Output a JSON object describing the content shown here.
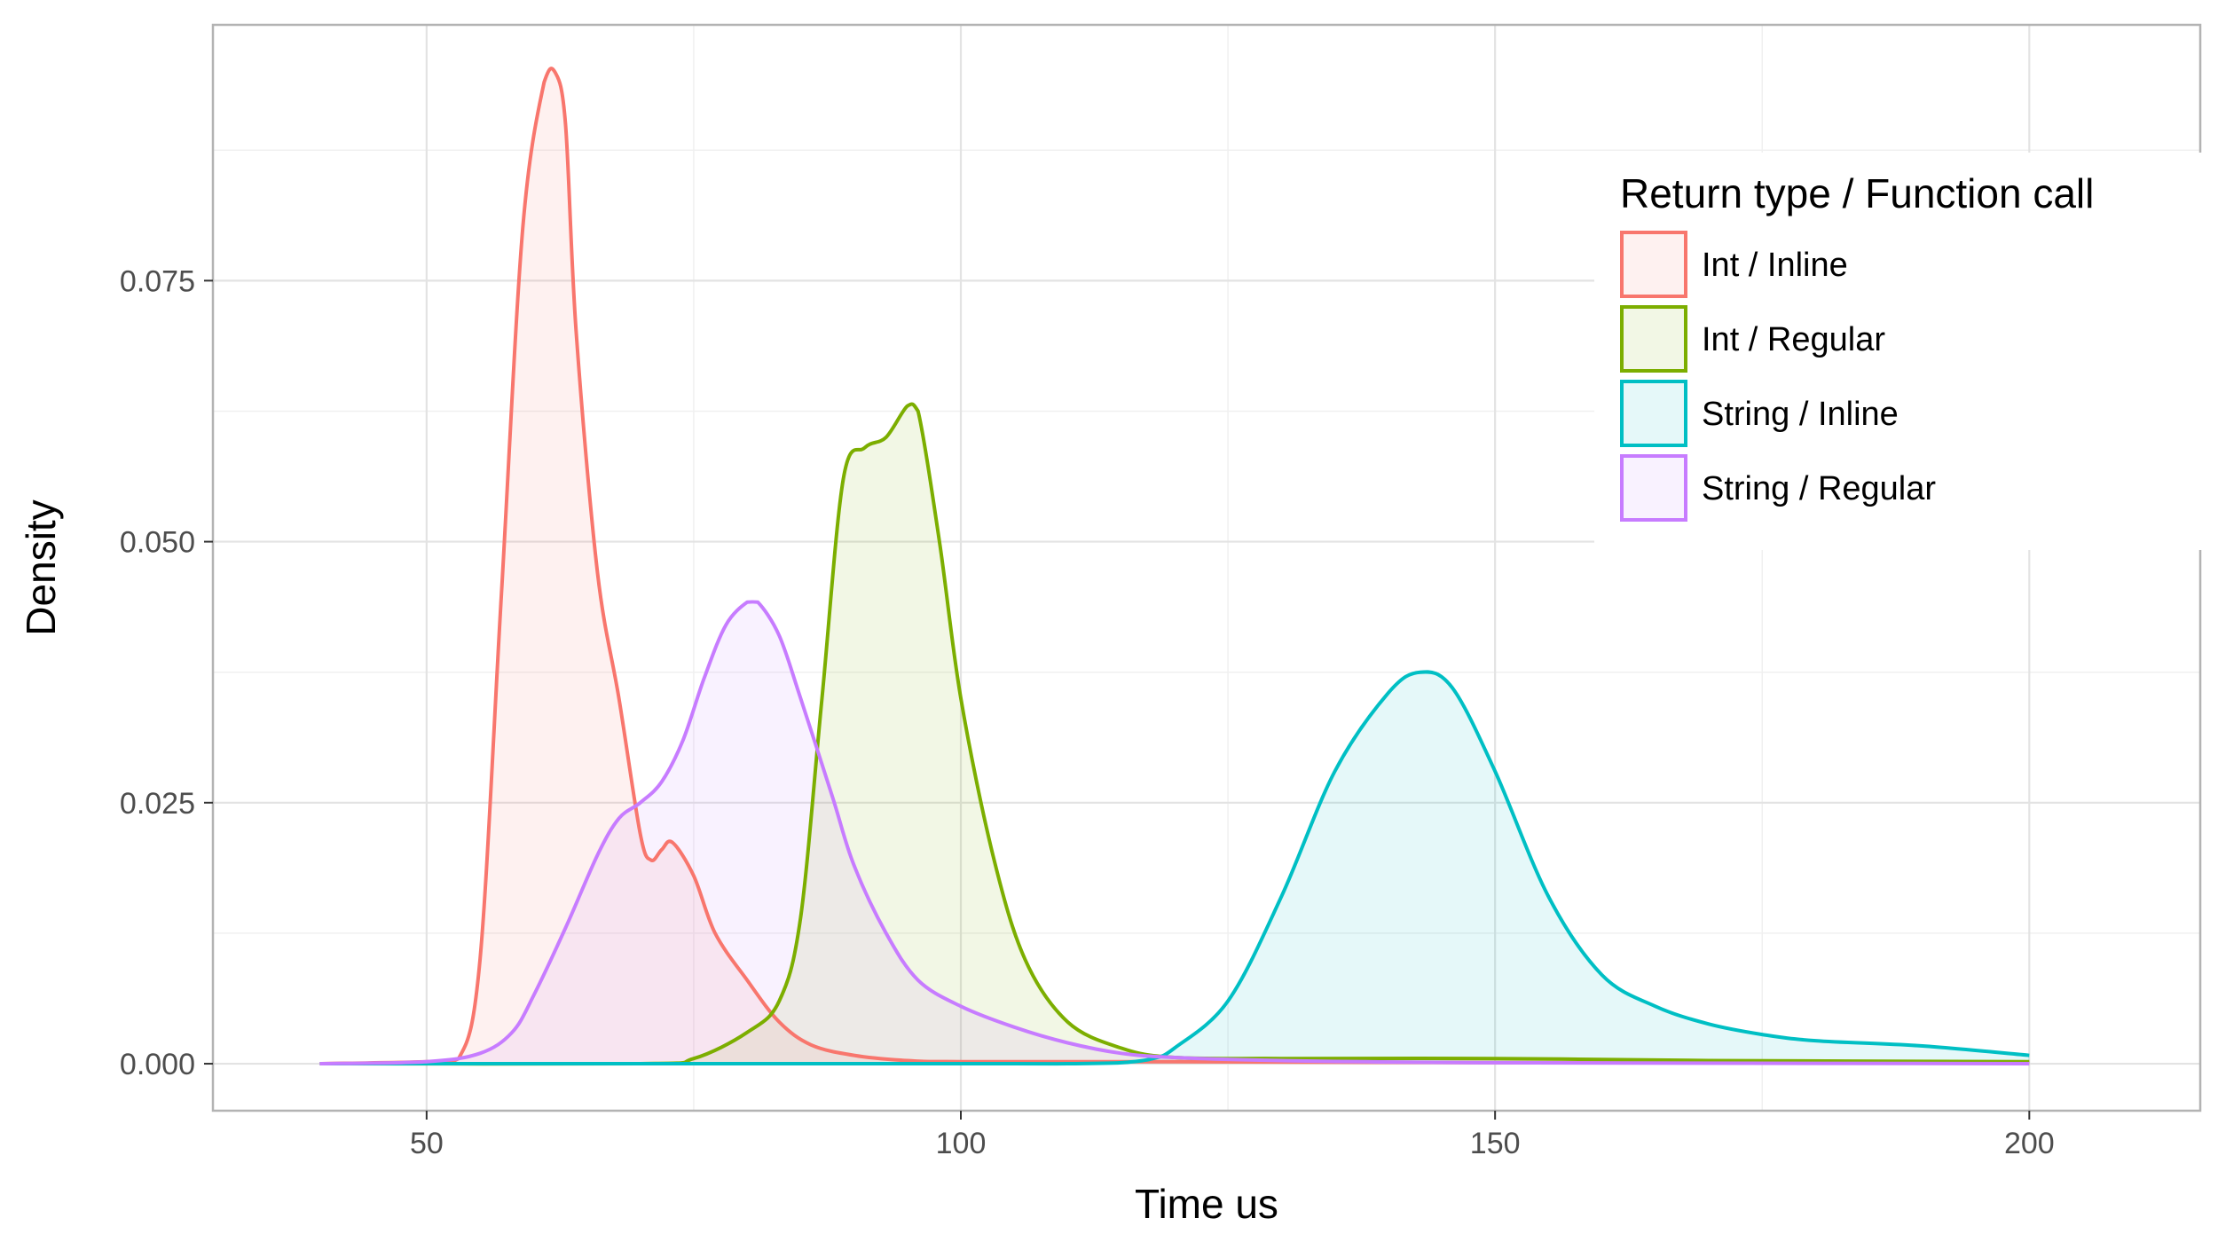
{
  "chart_data": {
    "type": "area",
    "subtype": "density",
    "xlabel": "Time us",
    "ylabel": "Density",
    "xlim": [
      30,
      216
    ],
    "ylim": [
      -0.0045,
      0.0995
    ],
    "x_ticks": [
      50,
      100,
      150,
      200
    ],
    "x_tick_labels": [
      "50",
      "100",
      "150",
      "200"
    ],
    "y_ticks": [
      0.0,
      0.025,
      0.05,
      0.075
    ],
    "y_tick_labels": [
      "0.000",
      "0.025",
      "0.050",
      "0.075"
    ],
    "grid": true,
    "legend": {
      "title": "Return type / Function call",
      "placement": "top-right, inside plot"
    },
    "series": [
      {
        "name": "Int / Inline",
        "color": "#F8766D",
        "x": [
          40,
          50,
          53,
          55,
          57,
          59,
          61,
          62,
          63,
          64,
          66,
          68,
          70,
          71,
          72,
          73,
          75,
          77,
          80,
          83,
          86,
          90,
          95,
          100,
          120,
          150,
          200
        ],
        "y": [
          0,
          0.0002,
          0.0005,
          0.01,
          0.045,
          0.08,
          0.094,
          0.095,
          0.09,
          0.07,
          0.047,
          0.035,
          0.022,
          0.0195,
          0.0205,
          0.0212,
          0.018,
          0.0125,
          0.008,
          0.004,
          0.0018,
          0.0008,
          0.0003,
          0.0002,
          0.0002,
          0.0001,
          0.0001
        ]
      },
      {
        "name": "Int / Regular",
        "color": "#7CAE00",
        "x": [
          40,
          70,
          75,
          80,
          83,
          85,
          87,
          89,
          91,
          93,
          95,
          96,
          98,
          100,
          103,
          106,
          110,
          115,
          120,
          130,
          150,
          170,
          200
        ],
        "y": [
          0,
          0,
          0.0005,
          0.003,
          0.006,
          0.014,
          0.035,
          0.056,
          0.059,
          0.06,
          0.063,
          0.0625,
          0.05,
          0.035,
          0.02,
          0.01,
          0.004,
          0.0015,
          0.0006,
          0.0005,
          0.0005,
          0.0003,
          0.0002
        ]
      },
      {
        "name": "String / Inline",
        "color": "#00BFC4",
        "x": [
          40,
          100,
          110,
          115,
          118,
          120,
          125,
          130,
          135,
          140,
          143,
          146,
          150,
          155,
          160,
          165,
          170,
          175,
          180,
          190,
          200
        ],
        "y": [
          0,
          0,
          0,
          0.0001,
          0.0005,
          0.0015,
          0.006,
          0.016,
          0.028,
          0.0355,
          0.0375,
          0.036,
          0.028,
          0.016,
          0.0085,
          0.0055,
          0.0038,
          0.0028,
          0.0022,
          0.0017,
          0.0008
        ]
      },
      {
        "name": "String / Regular",
        "color": "#C77CFF",
        "x": [
          40,
          50,
          55,
          58,
          60,
          63,
          66,
          68,
          70,
          72,
          74,
          76,
          78,
          80,
          81,
          83,
          85,
          88,
          90,
          93,
          96,
          100,
          105,
          110,
          115,
          120,
          130,
          150,
          200
        ],
        "y": [
          0,
          0.0002,
          0.001,
          0.003,
          0.0065,
          0.013,
          0.02,
          0.0235,
          0.025,
          0.027,
          0.031,
          0.037,
          0.042,
          0.0442,
          0.0442,
          0.041,
          0.035,
          0.0255,
          0.019,
          0.0125,
          0.008,
          0.0055,
          0.0035,
          0.002,
          0.001,
          0.0006,
          0.0003,
          0.0001,
          0
        ]
      }
    ]
  }
}
